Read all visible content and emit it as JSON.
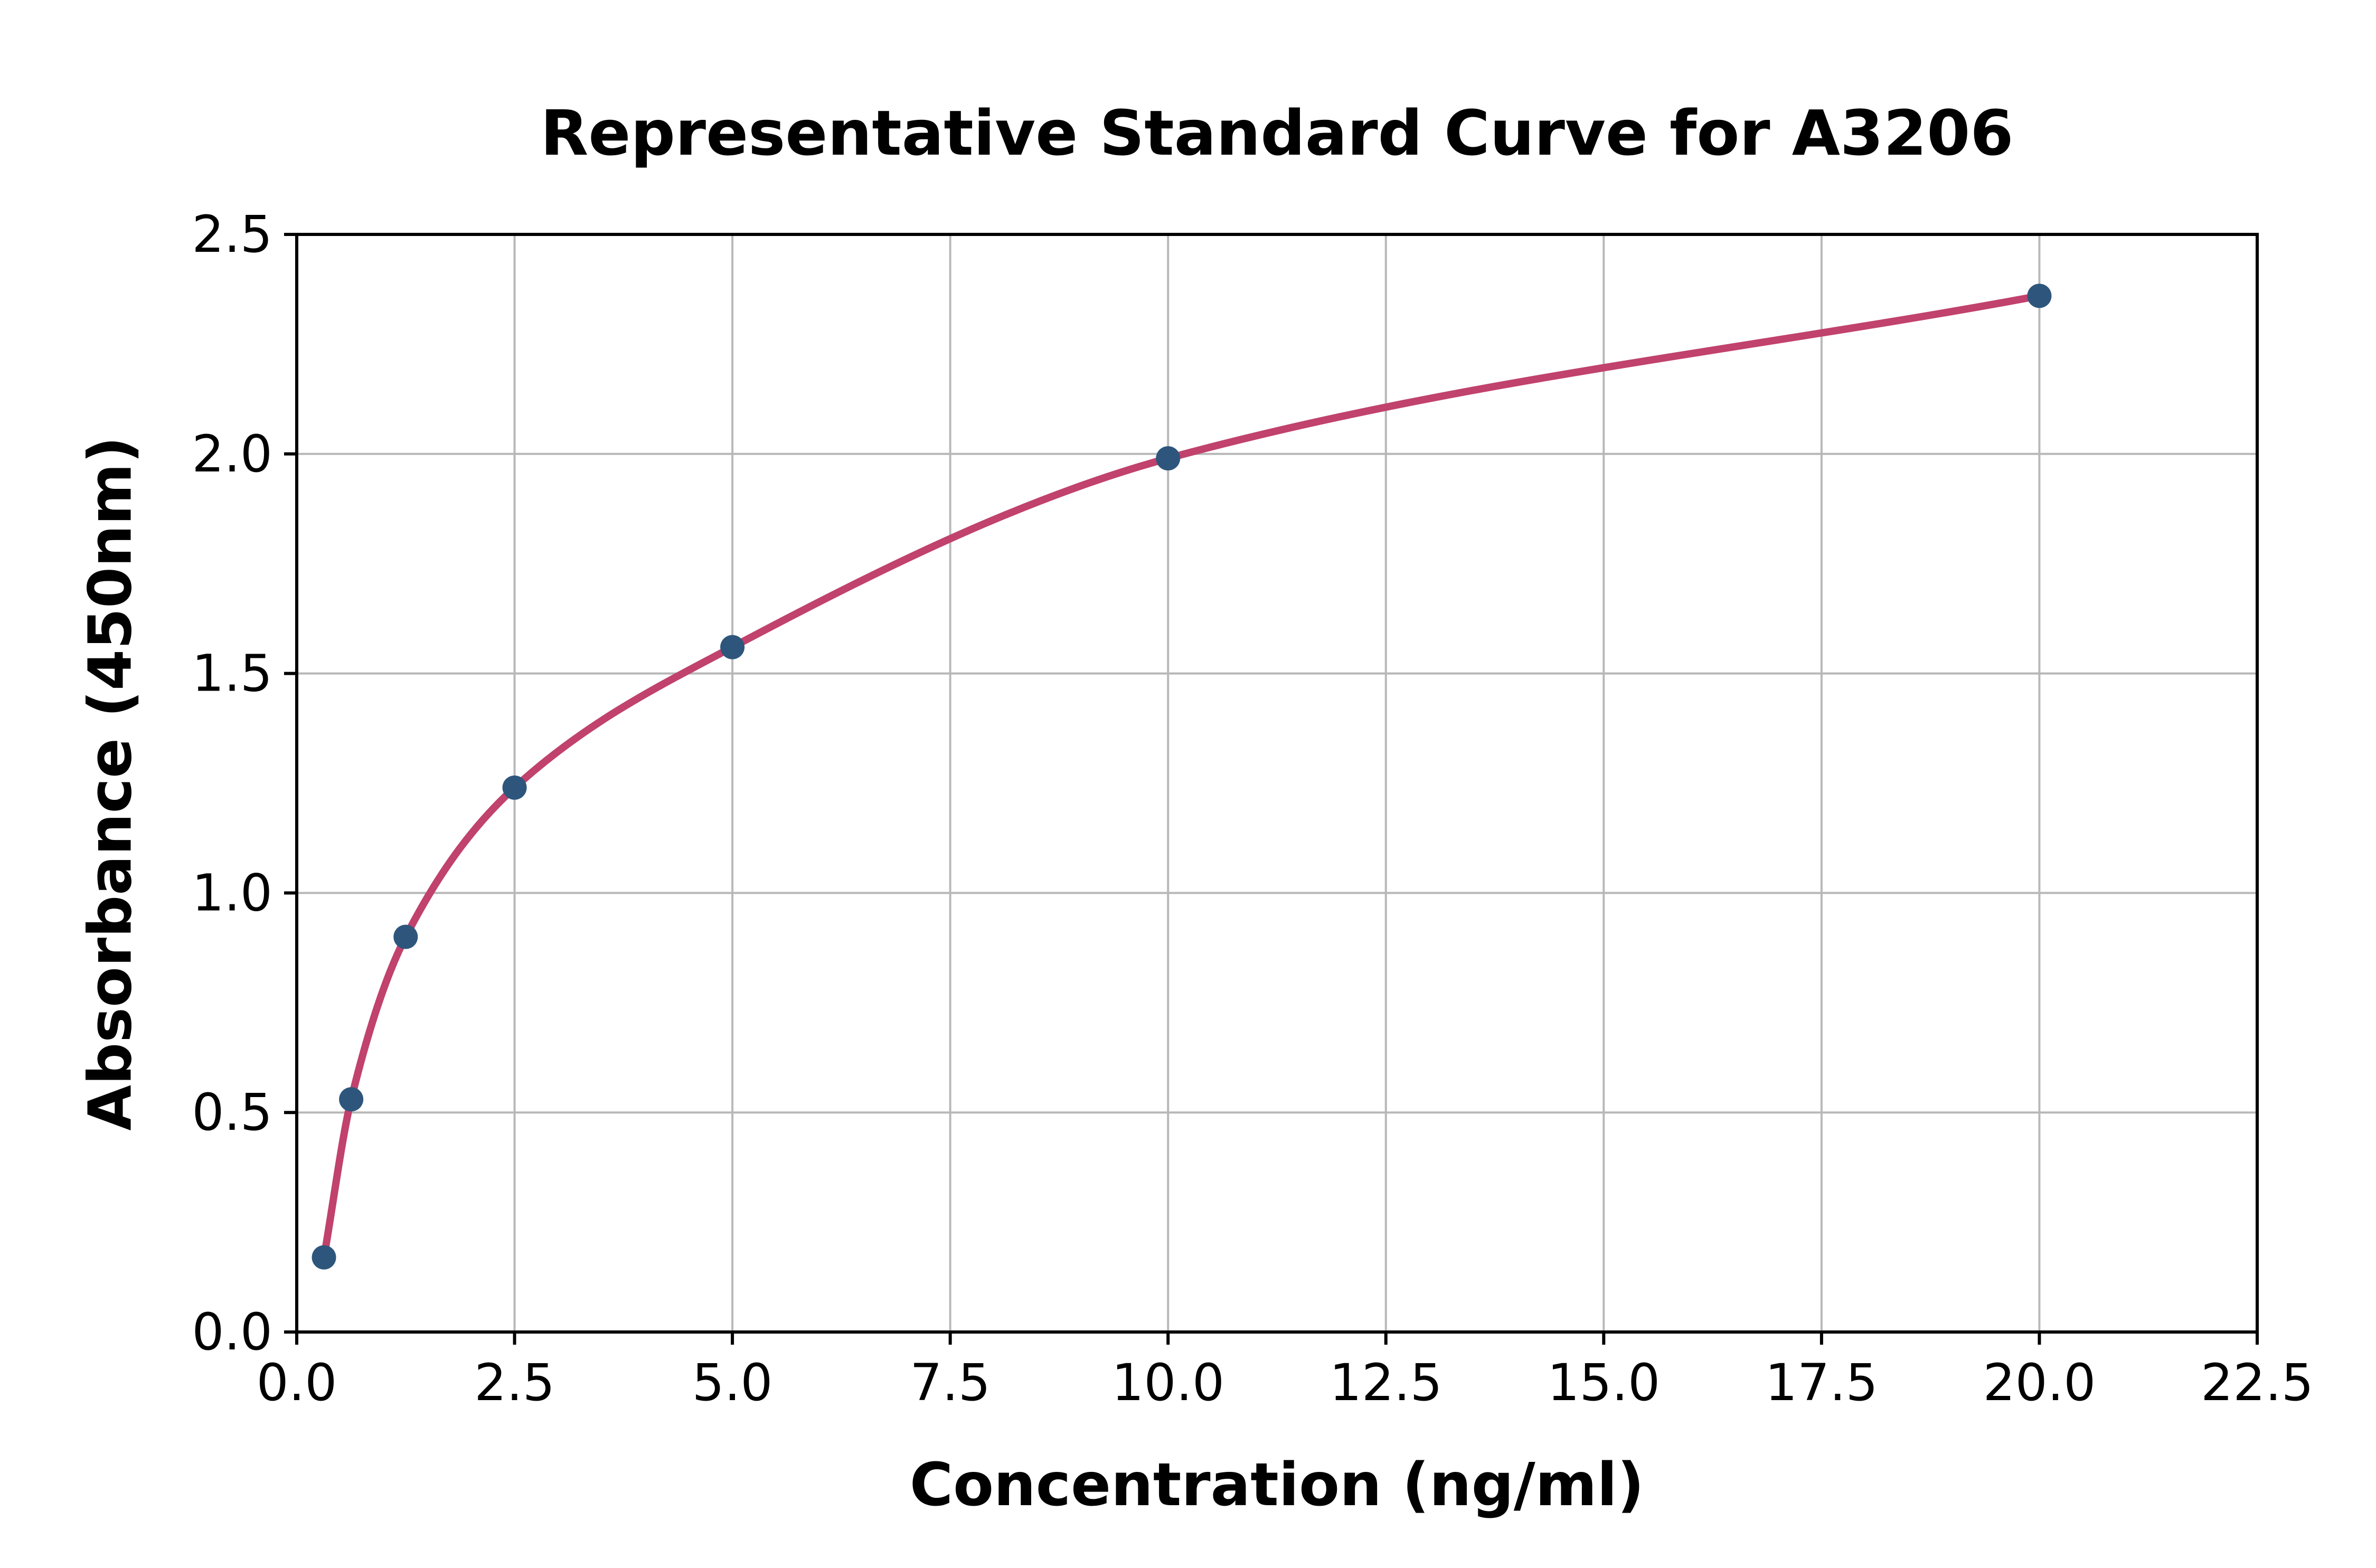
{
  "figure": {
    "background_color": "#ffffff",
    "text_color": "#000000"
  },
  "chart_data": {
    "type": "scatter",
    "title": "Representative Standard Curve for A3206",
    "xlabel": "Concentration (ng/ml)",
    "ylabel": "Absorbance (450nm)",
    "xlim": [
      0,
      22.5
    ],
    "ylim": [
      0,
      2.5
    ],
    "xtick_labels": [
      "0.0",
      "2.5",
      "5.0",
      "7.5",
      "10.0",
      "12.5",
      "15.0",
      "17.5",
      "20.0",
      "22.5"
    ],
    "ytick_labels": [
      "0.0",
      "0.5",
      "1.0",
      "1.5",
      "2.0",
      "2.5"
    ],
    "grid": true,
    "legend": "none",
    "x": [
      0.3125,
      0.625,
      1.25,
      2.5,
      5,
      10,
      20
    ],
    "y": [
      0.17,
      0.53,
      0.9,
      1.24,
      1.56,
      1.99,
      2.36
    ],
    "series_names": [
      "fitted standard curve",
      "standard data points"
    ],
    "line_color": "#c0426d",
    "marker_color": "#2e567c",
    "grid_color": "#b8b8b8",
    "axis_color": "#000000"
  }
}
